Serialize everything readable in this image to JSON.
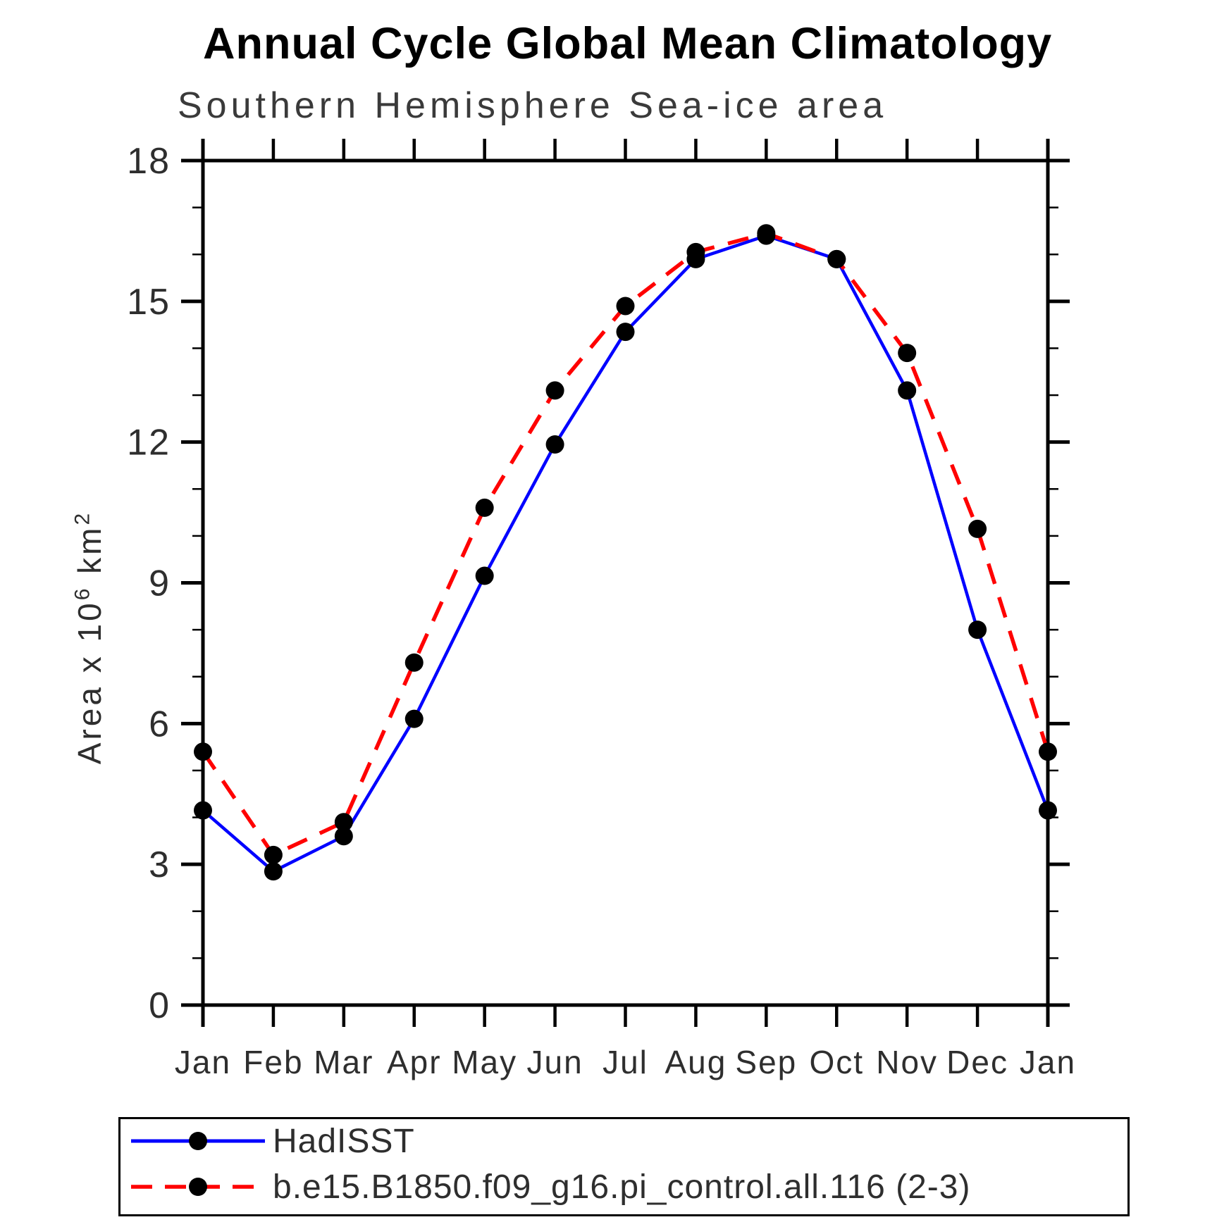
{
  "page": {
    "title": "Annual Cycle Global Mean Climatology",
    "subtitle": "Southern Hemisphere Sea-ice area"
  },
  "chart_data": {
    "type": "line",
    "title": "Annual Cycle Global Mean Climatology",
    "subtitle": "Southern Hemisphere Sea-ice area",
    "xlabel": "",
    "ylabel": "Area x 10^6 km^2",
    "ylabel_parts": {
      "base1": "Area x 10",
      "exp1": "6",
      "base2": " km",
      "exp2": "2"
    },
    "x_tick_labels": [
      "Jan",
      "Feb",
      "Mar",
      "Apr",
      "May",
      "Jun",
      "Jul",
      "Aug",
      "Sep",
      "Oct",
      "Nov",
      "Dec",
      "Jan"
    ],
    "y_ticks_major": [
      0,
      3,
      6,
      9,
      12,
      15,
      18
    ],
    "y_minor_step": 1,
    "ylim": [
      0,
      18
    ],
    "grid": false,
    "legend_position": "bottom-left-box",
    "marker": {
      "shape": "circle",
      "color": "#000000"
    },
    "series": [
      {
        "name": "HadISST",
        "color": "#0000ff",
        "style": "solid",
        "values": [
          4.15,
          2.85,
          3.6,
          6.1,
          9.15,
          11.95,
          14.35,
          15.9,
          16.4,
          15.9,
          13.1,
          8.0,
          4.15
        ]
      },
      {
        "name": "b.e15.B1850.f09_g16.pi_control.all.116 (2-3)",
        "color": "#ff0000",
        "style": "dashed",
        "values": [
          5.4,
          3.2,
          3.9,
          7.3,
          10.6,
          13.1,
          14.9,
          16.05,
          16.45,
          15.9,
          13.9,
          10.15,
          5.4
        ]
      }
    ]
  }
}
